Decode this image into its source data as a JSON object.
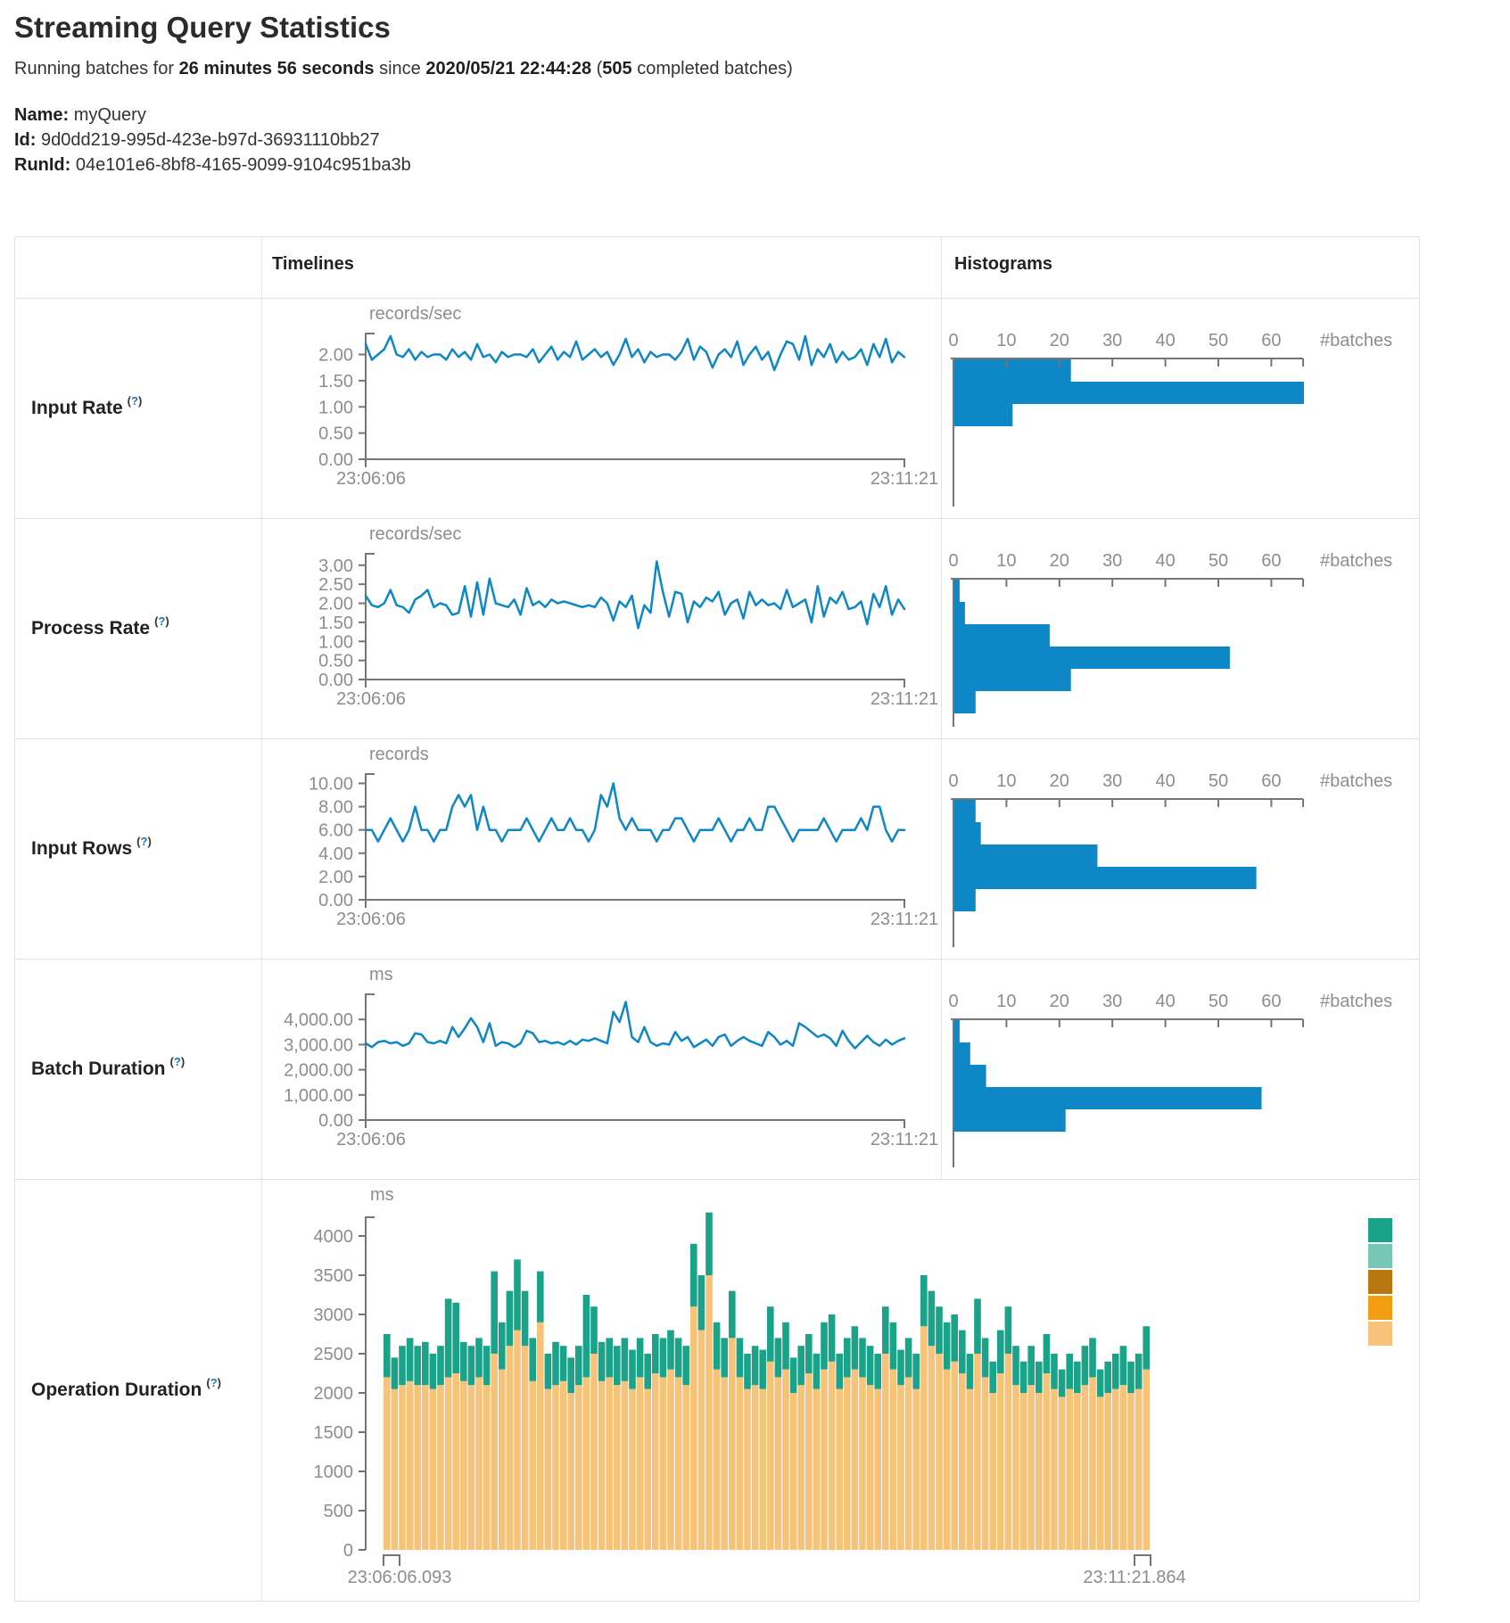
{
  "header": {
    "title": "Streaming Query Statistics",
    "running_prefix": "Running batches for ",
    "running_duration": "26 minutes 56 seconds",
    "running_since": " since ",
    "start_time": "2020/05/21 22:44:28",
    "paren_open": " (",
    "completed_count": "505",
    "completed_suffix": " completed batches)",
    "fields": [
      {
        "label": "Name:",
        "value": " myQuery"
      },
      {
        "label": "Id:",
        "value": " 9d0dd219-995d-423e-b97d-36931110bb27"
      },
      {
        "label": "RunId:",
        "value": " 04e101e6-8bf8-4165-9099-9104c951ba3b"
      }
    ]
  },
  "table": {
    "timelines_header": "Timelines",
    "histograms_header": "Histograms",
    "row_labels": [
      {
        "label": "Input Rate",
        "help_open": "(",
        "help_q": "?",
        "help_close": ")"
      },
      {
        "label": "Process Rate",
        "help_open": "(",
        "help_q": "?",
        "help_close": ")"
      },
      {
        "label": "Input Rows",
        "help_open": "(",
        "help_q": "?",
        "help_close": ")"
      },
      {
        "label": "Batch Duration",
        "help_open": "(",
        "help_q": "?",
        "help_close": ")"
      },
      {
        "label": "Operation Duration",
        "help_open": "(",
        "help_q": "?",
        "help_close": ")"
      }
    ]
  },
  "colors": {
    "blue": "#0d87c6",
    "axis": "#757575",
    "axis_text": "#8d8d8d",
    "tan": "#f7c379",
    "green": "#1ba389",
    "border": "#e3e3e3",
    "legend": [
      "#1ba389",
      "#76c7b6",
      "#b8780f",
      "#f39d12",
      "#f7c379"
    ]
  },
  "chart_data": [
    {
      "name": "input-rate-timeline",
      "type": "line",
      "row": 0,
      "unit": "records/sec",
      "x_start_label": "23:06:06",
      "x_end_label": "23:11:21",
      "yticks": [
        0,
        0.5,
        1,
        1.5,
        2
      ],
      "ytick_labels": [
        "0.00",
        "0.50",
        "1.00",
        "1.50",
        "2.00"
      ],
      "ymax": 2.4,
      "values": [
        2.2,
        1.9,
        2.0,
        2.1,
        2.35,
        2.0,
        1.95,
        2.1,
        1.9,
        2.05,
        1.95,
        2.0,
        2.0,
        1.9,
        2.1,
        1.95,
        2.05,
        1.9,
        2.2,
        1.95,
        2.0,
        1.85,
        2.05,
        1.95,
        2.0,
        2.0,
        1.95,
        2.1,
        1.85,
        2.0,
        2.15,
        1.9,
        2.05,
        1.95,
        2.25,
        1.9,
        2.0,
        2.1,
        1.95,
        2.05,
        1.8,
        2.0,
        2.3,
        1.95,
        2.1,
        1.85,
        2.05,
        1.95,
        2.0,
        2.0,
        1.9,
        2.05,
        2.3,
        1.9,
        2.15,
        2.05,
        1.75,
        2.0,
        2.1,
        1.95,
        2.25,
        1.8,
        2.0,
        2.15,
        1.9,
        2.05,
        1.7,
        2.0,
        2.25,
        2.2,
        1.9,
        2.35,
        1.8,
        2.1,
        1.95,
        2.2,
        1.85,
        2.05,
        1.9,
        1.95,
        2.1,
        1.8,
        2.2,
        1.95,
        2.3,
        1.85,
        2.05,
        1.95
      ]
    },
    {
      "name": "input-rate-histogram",
      "type": "hbar",
      "row": 0,
      "xlabel": "#batches",
      "xticks": [
        0,
        10,
        20,
        30,
        40,
        50,
        60
      ],
      "xmax": 66,
      "values": [
        22,
        66,
        11
      ]
    },
    {
      "name": "process-rate-timeline",
      "type": "line",
      "row": 1,
      "unit": "records/sec",
      "x_start_label": "23:06:06",
      "x_end_label": "23:11:21",
      "yticks": [
        0,
        0.5,
        1,
        1.5,
        2,
        2.5,
        3
      ],
      "ytick_labels": [
        "0.00",
        "0.50",
        "1.00",
        "1.50",
        "2.00",
        "2.50",
        "3.00"
      ],
      "ymax": 3.3,
      "values": [
        2.2,
        1.95,
        1.9,
        2.0,
        2.35,
        1.95,
        1.9,
        1.75,
        2.1,
        2.2,
        2.35,
        1.9,
        2.0,
        1.95,
        1.7,
        1.75,
        2.45,
        1.65,
        2.55,
        1.7,
        2.65,
        2.0,
        1.95,
        1.9,
        2.1,
        1.7,
        2.4,
        1.95,
        2.05,
        1.9,
        2.1,
        2.0,
        2.05,
        2.0,
        1.95,
        1.9,
        1.95,
        1.9,
        2.15,
        2.0,
        1.55,
        2.05,
        1.9,
        2.2,
        1.35,
        1.95,
        1.75,
        3.1,
        2.3,
        1.65,
        2.3,
        2.25,
        1.5,
        2.05,
        1.9,
        2.15,
        2.05,
        2.3,
        1.7,
        2.0,
        2.1,
        1.6,
        2.3,
        1.95,
        2.1,
        1.95,
        2.0,
        1.85,
        2.35,
        1.9,
        2.0,
        2.1,
        1.5,
        2.45,
        1.65,
        2.15,
        2.0,
        2.3,
        1.85,
        1.9,
        2.05,
        1.45,
        2.25,
        1.9,
        2.45,
        1.7,
        2.1,
        1.85
      ]
    },
    {
      "name": "process-rate-histogram",
      "type": "hbar",
      "row": 1,
      "xlabel": "#batches",
      "xticks": [
        0,
        10,
        20,
        30,
        40,
        50,
        60
      ],
      "xmax": 66,
      "values": [
        1,
        2,
        18,
        52,
        22,
        4
      ]
    },
    {
      "name": "input-rows-timeline",
      "type": "line",
      "row": 2,
      "unit": "records",
      "x_start_label": "23:06:06",
      "x_end_label": "23:11:21",
      "yticks": [
        0,
        2,
        4,
        6,
        8,
        10
      ],
      "ytick_labels": [
        "0.00",
        "2.00",
        "4.00",
        "6.00",
        "8.00",
        "10.00"
      ],
      "ymax": 10.8,
      "values": [
        6,
        6,
        5,
        6,
        7,
        6,
        5,
        6,
        8,
        6,
        6,
        5,
        6,
        6,
        8,
        9,
        8,
        9,
        6,
        8,
        6,
        6,
        5,
        6,
        6,
        6,
        7,
        6,
        5,
        6,
        7,
        6,
        6,
        7,
        6,
        6,
        5,
        6,
        9,
        8,
        10,
        7,
        6,
        7,
        6,
        6,
        6,
        5,
        6,
        6,
        7,
        7,
        6,
        5,
        6,
        6,
        6,
        7,
        6,
        5,
        6,
        6,
        7,
        6,
        6,
        8,
        8,
        7,
        6,
        5,
        6,
        6,
        6,
        6,
        7,
        6,
        5,
        6,
        6,
        6,
        7,
        6,
        8,
        8,
        6,
        5,
        6,
        6
      ]
    },
    {
      "name": "input-rows-histogram",
      "type": "hbar",
      "row": 2,
      "xlabel": "#batches",
      "xticks": [
        0,
        10,
        20,
        30,
        40,
        50,
        60
      ],
      "xmax": 66,
      "values": [
        4,
        5,
        27,
        57,
        4
      ]
    },
    {
      "name": "batch-duration-timeline",
      "type": "line",
      "row": 3,
      "unit": "ms",
      "x_start_label": "23:06:06",
      "x_end_label": "23:11:21",
      "yticks": [
        0,
        1000,
        2000,
        3000,
        4000
      ],
      "ytick_labels": [
        "0.00",
        "1,000.00",
        "2,000.00",
        "3,000.00",
        "4,000.00"
      ],
      "ymax": 5000,
      "values": [
        3050,
        2900,
        3100,
        3150,
        3050,
        3100,
        2950,
        3050,
        3450,
        3400,
        3100,
        3050,
        3150,
        3050,
        3700,
        3300,
        3650,
        4050,
        3700,
        3100,
        3850,
        2950,
        3100,
        3050,
        2900,
        3050,
        3550,
        3450,
        3100,
        3150,
        3050,
        3100,
        3000,
        3150,
        3000,
        3200,
        3150,
        3250,
        3150,
        3050,
        4300,
        3900,
        4700,
        3300,
        3100,
        3700,
        3100,
        2950,
        3050,
        3000,
        3500,
        3150,
        3300,
        2900,
        3050,
        3200,
        2950,
        3300,
        3400,
        2950,
        3150,
        3300,
        3150,
        3050,
        2950,
        3500,
        3300,
        3000,
        3150,
        2950,
        3850,
        3700,
        3500,
        3300,
        3400,
        3250,
        2950,
        3550,
        3150,
        2850,
        3100,
        3350,
        3100,
        2950,
        3200,
        3000,
        3150,
        3250
      ]
    },
    {
      "name": "batch-duration-histogram",
      "type": "hbar",
      "row": 3,
      "xlabel": "#batches",
      "xticks": [
        0,
        10,
        20,
        30,
        40,
        50,
        60
      ],
      "xmax": 66,
      "values": [
        1,
        3,
        6,
        58,
        21
      ]
    },
    {
      "name": "operation-duration-stacked",
      "type": "stacked",
      "row": 4,
      "unit": "ms",
      "x_start_label": "23:06:06.093",
      "x_end_label": "23:11:21.864",
      "yticks": [
        0,
        500,
        1000,
        1500,
        2000,
        2500,
        3000,
        3500,
        4000
      ],
      "ytick_labels": [
        "0",
        "500",
        "1000",
        "1500",
        "2000",
        "2500",
        "3000",
        "3500",
        "4000"
      ],
      "legend_colors": [
        "#1ba389",
        "#76c7b6",
        "#b8780f",
        "#f39d12",
        "#f7c379"
      ],
      "bottom_color": "#f7c379",
      "top_color": "#1ba389",
      "bottom_values": [
        2200,
        2050,
        2100,
        2150,
        2100,
        2100,
        2050,
        2100,
        2200,
        2250,
        2150,
        2100,
        2200,
        2100,
        2500,
        2300,
        2600,
        2800,
        2600,
        2150,
        2900,
        2050,
        2100,
        2150,
        2000,
        2100,
        2200,
        2500,
        2150,
        2200,
        2100,
        2150,
        2050,
        2200,
        2050,
        2250,
        2200,
        2300,
        2200,
        2100,
        3100,
        2800,
        3500,
        2300,
        2200,
        2700,
        2200,
        2050,
        2100,
        2050,
        2400,
        2200,
        2300,
        2000,
        2100,
        2250,
        2050,
        2300,
        2400,
        2050,
        2200,
        2300,
        2200,
        2100,
        2050,
        2500,
        2300,
        2100,
        2200,
        2050,
        2850,
        2600,
        2500,
        2300,
        2400,
        2250,
        2050,
        2500,
        2200,
        2000,
        2250,
        2500,
        2100,
        2000,
        2100,
        2000,
        2250,
        2050,
        1950,
        2050,
        2000,
        2100,
        2200,
        1950,
        2000,
        2050,
        2100,
        2000,
        2050,
        2300
      ],
      "total_values": [
        2750,
        2450,
        2600,
        2700,
        2600,
        2650,
        2500,
        2600,
        3200,
        3150,
        2650,
        2600,
        2700,
        2600,
        3550,
        2900,
        3300,
        3700,
        3300,
        2700,
        3550,
        2500,
        2650,
        2600,
        2450,
        2600,
        3250,
        3100,
        2650,
        2700,
        2600,
        2700,
        2550,
        2700,
        2500,
        2750,
        2700,
        2800,
        2700,
        2600,
        3900,
        3500,
        4300,
        2900,
        2700,
        3300,
        2700,
        2500,
        2600,
        2550,
        3100,
        2700,
        2900,
        2450,
        2600,
        2750,
        2500,
        2900,
        3000,
        2500,
        2700,
        2850,
        2700,
        2600,
        2500,
        3100,
        2900,
        2550,
        2700,
        2500,
        3500,
        3300,
        3100,
        2900,
        3000,
        2800,
        2500,
        3200,
        2700,
        2400,
        2800,
        3100,
        2600,
        2400,
        2600,
        2400,
        2750,
        2500,
        2300,
        2500,
        2400,
        2600,
        2700,
        2300,
        2400,
        2500,
        2600,
        2400,
        2500,
        2850
      ]
    }
  ]
}
